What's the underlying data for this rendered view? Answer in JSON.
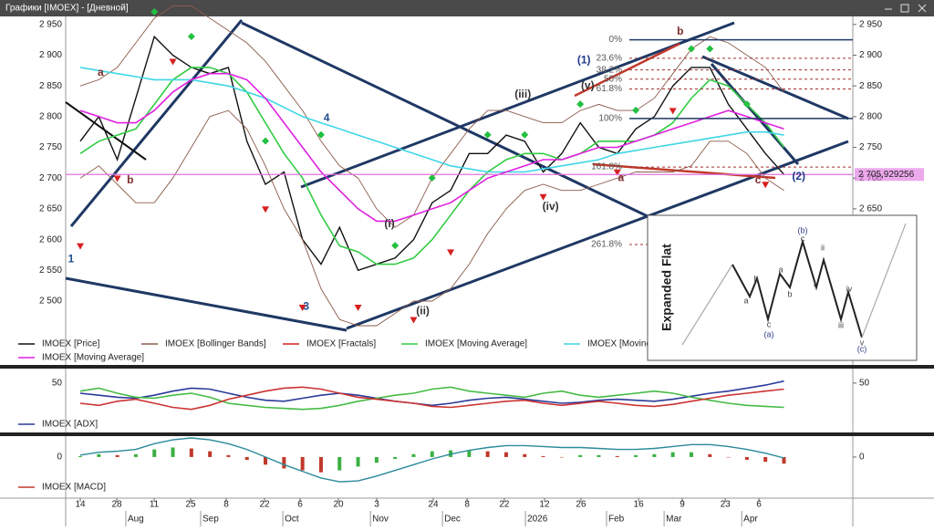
{
  "window": {
    "title": "Графики [IMOEX] - [Дневной]"
  },
  "chart_data": [
    {
      "type": "line",
      "xlim": [
        -0.79,
        41.72
      ],
      "ylim": [
        2411,
        2963
      ],
      "yticks": [
        {
          "value": 2500,
          "label": "2 500"
        },
        {
          "value": 2550,
          "label": "2 550"
        },
        {
          "value": 2600,
          "label": "2 600"
        },
        {
          "value": 2650,
          "label": "2 650"
        },
        {
          "value": 2700,
          "label": "2 700"
        },
        {
          "value": 2750,
          "label": "2 750"
        },
        {
          "value": 2800,
          "label": "2 800"
        },
        {
          "value": 2850,
          "label": "2 850"
        },
        {
          "value": 2900,
          "label": "2 900"
        },
        {
          "value": 2950,
          "label": "2 950"
        }
      ],
      "xticks": [
        {
          "value": 0,
          "label": "14"
        },
        {
          "value": 1.97,
          "label": "28"
        },
        {
          "value": 3.99,
          "label": "11"
        },
        {
          "value": 5.96,
          "label": "25"
        },
        {
          "value": 7.88,
          "label": "8"
        },
        {
          "value": 9.95,
          "label": "22"
        },
        {
          "value": 11.87,
          "label": "6"
        },
        {
          "value": 13.94,
          "label": "20"
        },
        {
          "value": 16.01,
          "label": "3"
        },
        {
          "value": 19.06,
          "label": "24"
        },
        {
          "value": 20.89,
          "label": "8"
        },
        {
          "value": 22.9,
          "label": "22"
        },
        {
          "value": 25.07,
          "label": "12"
        },
        {
          "value": 27.04,
          "label": "26"
        },
        {
          "value": 30.15,
          "label": "16"
        },
        {
          "value": 32.51,
          "label": "9"
        },
        {
          "value": 34.83,
          "label": "23"
        },
        {
          "value": 36.65,
          "label": "6"
        }
      ],
      "month_labels": [
        {
          "value": 3.05,
          "label": "Aug"
        },
        {
          "value": 7.09,
          "label": "Sep"
        },
        {
          "value": 11.53,
          "label": "Oct"
        },
        {
          "value": 16.26,
          "label": "Nov"
        },
        {
          "value": 20.15,
          "label": "Dec"
        },
        {
          "value": 24.63,
          "label": "2026"
        },
        {
          "value": 29.01,
          "label": "Feb"
        },
        {
          "value": 32.12,
          "label": "Mar"
        },
        {
          "value": 36.31,
          "label": "Apr"
        }
      ],
      "x": [
        0,
        1,
        2,
        3,
        4,
        5,
        6,
        7,
        8,
        9,
        10,
        11,
        12,
        13,
        14,
        15,
        16,
        17,
        18,
        19,
        20,
        21,
        22,
        23,
        24,
        25,
        26,
        27,
        28,
        29,
        30,
        31,
        32,
        33,
        34,
        35,
        36,
        37,
        38
      ],
      "series": [
        {
          "name": "IMOEX [Price]",
          "color": "#111111",
          "values": [
            2760,
            2800,
            2730,
            2830,
            2930,
            2900,
            2880,
            2870,
            2880,
            2760,
            2690,
            2710,
            2600,
            2560,
            2620,
            2550,
            2560,
            2570,
            2600,
            2660,
            2680,
            2740,
            2740,
            2770,
            2760,
            2710,
            2740,
            2790,
            2750,
            2740,
            2780,
            2800,
            2850,
            2880,
            2880,
            2820,
            2780,
            2740,
            2706
          ]
        },
        {
          "name": "IMOEX [Bollinger Bands]",
          "color": "#8b5a4a",
          "upper": [
            2850,
            2860,
            2880,
            2920,
            2960,
            2980,
            2980,
            2960,
            2940,
            2920,
            2890,
            2850,
            2810,
            2760,
            2720,
            2700,
            2650,
            2620,
            2640,
            2700,
            2740,
            2780,
            2810,
            2810,
            2800,
            2790,
            2790,
            2810,
            2820,
            2810,
            2810,
            2830,
            2870,
            2910,
            2930,
            2920,
            2900,
            2880,
            2840
          ],
          "lower": [
            2700,
            2720,
            2690,
            2660,
            2660,
            2700,
            2750,
            2800,
            2810,
            2780,
            2720,
            2650,
            2600,
            2520,
            2470,
            2460,
            2460,
            2480,
            2500,
            2500,
            2520,
            2560,
            2610,
            2650,
            2680,
            2690,
            2680,
            2680,
            2690,
            2700,
            2710,
            2710,
            2710,
            2720,
            2760,
            2760,
            2740,
            2700,
            2680
          ]
        },
        {
          "name": "IMOEX [Fractals]",
          "color": "#d62020",
          "up_color": "#22c040",
          "up": [
            null,
            null,
            null,
            null,
            2960,
            null,
            2920,
            null,
            null,
            null,
            2750,
            null,
            null,
            2760,
            null,
            null,
            null,
            2580,
            null,
            2690,
            null,
            null,
            2760,
            null,
            2760,
            null,
            null,
            2810,
            null,
            null,
            2800,
            null,
            null,
            2900,
            2900,
            null,
            2810,
            null,
            null
          ],
          "down": [
            2600,
            null,
            2710,
            null,
            null,
            2900,
            null,
            null,
            null,
            null,
            2660,
            null,
            2500,
            null,
            null,
            2500,
            null,
            null,
            2480,
            null,
            2590,
            null,
            null,
            null,
            null,
            2680,
            null,
            null,
            null,
            2720,
            null,
            null,
            2820,
            null,
            null,
            null,
            null,
            2700,
            null
          ]
        },
        {
          "name": "IMOEX [Moving Average]",
          "color": "#33cc44",
          "values": [
            2740,
            2760,
            2770,
            2780,
            2820,
            2860,
            2880,
            2880,
            2870,
            2840,
            2790,
            2740,
            2700,
            2640,
            2590,
            2580,
            2560,
            2560,
            2570,
            2600,
            2640,
            2680,
            2710,
            2730,
            2740,
            2740,
            2730,
            2740,
            2760,
            2760,
            2760,
            2770,
            2790,
            2830,
            2860,
            2850,
            2820,
            2790,
            2750
          ]
        },
        {
          "name": "IMOEX [Moving",
          "color": "#3fd6e6",
          "values": [
            2880,
            2875,
            2870,
            2865,
            2860,
            2860,
            2860,
            2855,
            2850,
            2840,
            2830,
            2815,
            2800,
            2790,
            2780,
            2770,
            2760,
            2750,
            2740,
            2730,
            2720,
            2715,
            2710,
            2710,
            2710,
            2715,
            2720,
            2725,
            2730,
            2740,
            2745,
            2750,
            2755,
            2760,
            2765,
            2770,
            2775,
            2775,
            2770
          ]
        },
        {
          "name": "IMOEX [Moving Average]",
          "color": "#e020e0",
          "values": [
            2810,
            2800,
            2790,
            2790,
            2810,
            2840,
            2860,
            2870,
            2870,
            2860,
            2830,
            2790,
            2750,
            2710,
            2680,
            2650,
            2630,
            2630,
            2640,
            2650,
            2660,
            2680,
            2700,
            2710,
            2720,
            2730,
            2730,
            2740,
            2750,
            2750,
            2760,
            2770,
            2780,
            2790,
            2800,
            2810,
            2800,
            2790,
            2780
          ]
        }
      ],
      "fib_levels": [
        {
          "label": "0%",
          "value": 2925,
          "line": "solid"
        },
        {
          "label": "23.6%",
          "value": 2895,
          "line": "dashed"
        },
        {
          "label": "38.2%",
          "value": 2876,
          "line": "dashed"
        },
        {
          "label": "50%",
          "value": 2861,
          "line": "dashed"
        },
        {
          "label": "61.8%",
          "value": 2845,
          "line": "dashed"
        },
        {
          "label": "100%",
          "value": 2797,
          "line": "solid"
        },
        {
          "label": "161.8%",
          "value": 2718,
          "line": "dashed"
        },
        {
          "label": "261.8%",
          "value": 2592,
          "line": "dashed"
        }
      ],
      "last": {
        "value": 2705.929256,
        "label": "2 705,929256",
        "color": "#e070e0"
      },
      "annotations": [
        {
          "text": "1",
          "x": -0.5,
          "y": 2568,
          "color": "#1f4e8c"
        },
        {
          "text": "a",
          "x": 1.1,
          "y": 2871,
          "color": "#7b2c2c"
        },
        {
          "text": "b",
          "x": 2.7,
          "y": 2696,
          "color": "#7b2c2c"
        },
        {
          "text": "3",
          "x": 12.2,
          "y": 2491,
          "color": "#1f4e8c"
        },
        {
          "text": "4",
          "x": 13.3,
          "y": 2797,
          "color": "#1f4e8c"
        },
        {
          "text": "(i)",
          "x": 16.7,
          "y": 2625,
          "color": "#333333"
        },
        {
          "text": "(ii)",
          "x": 18.5,
          "y": 2483,
          "color": "#333333"
        },
        {
          "text": "(iii)",
          "x": 23.9,
          "y": 2836,
          "color": "#333333"
        },
        {
          "text": "(iv)",
          "x": 25.4,
          "y": 2653,
          "color": "#333333"
        },
        {
          "text": "(v)",
          "x": 27.4,
          "y": 2850,
          "color": "#333333"
        },
        {
          "text": "(1)",
          "x": 27.2,
          "y": 2891,
          "color": "#1f3a8c"
        },
        {
          "text": "a",
          "x": 29.2,
          "y": 2700,
          "color": "#7b2c2c"
        },
        {
          "text": "b",
          "x": 32.4,
          "y": 2938,
          "color": "#7b2c2c"
        },
        {
          "text": "c",
          "x": 36.6,
          "y": 2696,
          "color": "#7b2c2c"
        },
        {
          "text": "(2)",
          "x": 38.8,
          "y": 2702,
          "color": "#1f3a8c"
        }
      ]
    },
    {
      "type": "line",
      "ylim": [
        12,
        58
      ],
      "yticks": [
        50
      ],
      "x": [
        0,
        1,
        2,
        3,
        4,
        5,
        6,
        7,
        8,
        9,
        10,
        11,
        12,
        13,
        14,
        15,
        16,
        17,
        18,
        19,
        20,
        21,
        22,
        23,
        24,
        25,
        26,
        27,
        28,
        29,
        30,
        31,
        32,
        33,
        34,
        35,
        36,
        37,
        38
      ],
      "series": [
        {
          "name": "IMOEX [ADX]",
          "color": "#2a3a9a",
          "values": [
            40,
            38,
            36,
            35,
            38,
            42,
            45,
            44,
            40,
            36,
            33,
            32,
            35,
            38,
            40,
            38,
            35,
            32,
            30,
            28,
            30,
            33,
            35,
            36,
            34,
            32,
            30,
            31,
            33,
            34,
            33,
            32,
            34,
            37,
            40,
            42,
            45,
            48,
            52
          ]
        },
        {
          "color": "#44bb44",
          "values": [
            42,
            45,
            40,
            36,
            35,
            38,
            40,
            36,
            30,
            28,
            26,
            25,
            24,
            25,
            28,
            32,
            35,
            38,
            40,
            44,
            46,
            42,
            40,
            38,
            36,
            40,
            42,
            38,
            36,
            38,
            40,
            42,
            40,
            36,
            33,
            30,
            28,
            27,
            26
          ]
        },
        {
          "color": "#cc3333",
          "values": [
            30,
            28,
            32,
            34,
            30,
            26,
            24,
            28,
            34,
            38,
            42,
            45,
            46,
            44,
            40,
            36,
            34,
            32,
            30,
            27,
            26,
            28,
            30,
            32,
            33,
            30,
            28,
            30,
            32,
            30,
            28,
            27,
            29,
            32,
            35,
            38,
            40,
            42,
            44
          ]
        }
      ]
    },
    {
      "type": "macd",
      "ylim": [
        -45,
        20
      ],
      "yticks": [
        0
      ],
      "x": [
        0,
        1,
        2,
        3,
        4,
        5,
        6,
        7,
        8,
        9,
        10,
        11,
        12,
        13,
        14,
        15,
        16,
        17,
        18,
        19,
        20,
        21,
        22,
        23,
        24,
        25,
        26,
        27,
        28,
        29,
        30,
        31,
        32,
        33,
        34,
        35,
        36,
        37,
        38
      ],
      "series": [
        {
          "name": "IMOEX [MACD]",
          "color": "#c0392b",
          "up_color": "#3cb043",
          "values": [
            1,
            3,
            2,
            3,
            8,
            10,
            9,
            6,
            2,
            -3,
            -8,
            -12,
            -14,
            -16,
            -14,
            -10,
            -6,
            -2,
            3,
            6,
            7,
            7,
            6,
            5,
            3,
            1,
            0,
            2,
            2,
            1,
            2,
            3,
            5,
            5,
            3,
            0,
            -3,
            -5,
            -7
          ]
        }
      ],
      "signal": {
        "color": "#2a8a9a",
        "values": [
          2,
          5,
          6,
          8,
          14,
          18,
          20,
          18,
          14,
          8,
          0,
          -8,
          -15,
          -22,
          -26,
          -25,
          -20,
          -14,
          -8,
          -2,
          3,
          7,
          10,
          12,
          12,
          11,
          10,
          10,
          9,
          8,
          8,
          9,
          11,
          13,
          13,
          11,
          8,
          4,
          -1
        ]
      }
    }
  ],
  "inset": {
    "title": "Expanded Flat",
    "labels": [
      "a",
      "b",
      "c",
      "(a)",
      "a",
      "b",
      "(b)",
      "c",
      "ii",
      "i",
      "iii",
      "iv",
      "v",
      "(c)"
    ]
  }
}
